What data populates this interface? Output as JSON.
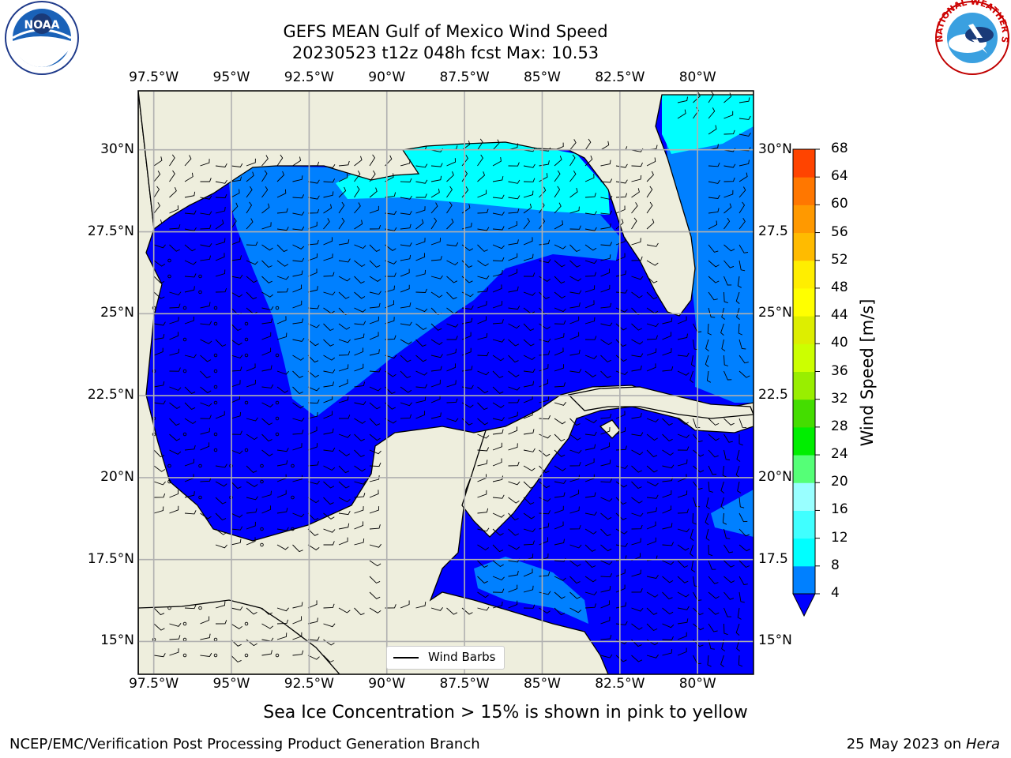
{
  "title": {
    "line1": "GEFS MEAN Gulf of Mexico Wind Speed",
    "line2": "20230523 t12z 048h fcst   Max: 10.53"
  },
  "map": {
    "lon_labels": [
      "97.5°W",
      "95°W",
      "92.5°W",
      "90°W",
      "87.5°W",
      "85°W",
      "82.5°W",
      "80°W"
    ],
    "lat_labels_left": [
      "30°N",
      "27.5°N",
      "25°N",
      "22.5°N",
      "20°N",
      "17.5°N",
      "15°N"
    ],
    "lat_labels_right": [
      "30°N",
      "27.5",
      "25°N",
      "22.5",
      "20°N",
      "17.5",
      "15°N"
    ],
    "legend_label": "Wind Barbs",
    "land_color": "#eeeedd",
    "extent": {
      "lon": [
        -98,
        -78.2
      ],
      "lat": [
        14.0,
        31.8
      ]
    }
  },
  "colorbar": {
    "title": "Wind Speed [m/s]",
    "ticks": [
      "4",
      "8",
      "12",
      "16",
      "20",
      "24",
      "28",
      "32",
      "36",
      "40",
      "44",
      "48",
      "52",
      "56",
      "60",
      "64",
      "68"
    ],
    "colors": [
      "#0080ff",
      "#00ffff",
      "#40ffff",
      "#99ffff",
      "#55ff77",
      "#00ee00",
      "#44dd00",
      "#99ee00",
      "#ccff00",
      "#ddee00",
      "#ffff00",
      "#ffee00",
      "#ffbb00",
      "#ff9900",
      "#ff7700",
      "#ff4400",
      "#ff0000"
    ],
    "under_color": "#0000ff"
  },
  "footer": {
    "note": "Sea Ice Concentration > 15% is shown in pink to yellow",
    "left": "NCEP/EMC/Verification Post Processing Product Generation Branch",
    "right_prefix": "25 May 2023 on",
    "right_host": "Hera"
  },
  "logos": {
    "noaa": "NOAA",
    "nws": "NATIONAL WEATHER SERVICE"
  }
}
